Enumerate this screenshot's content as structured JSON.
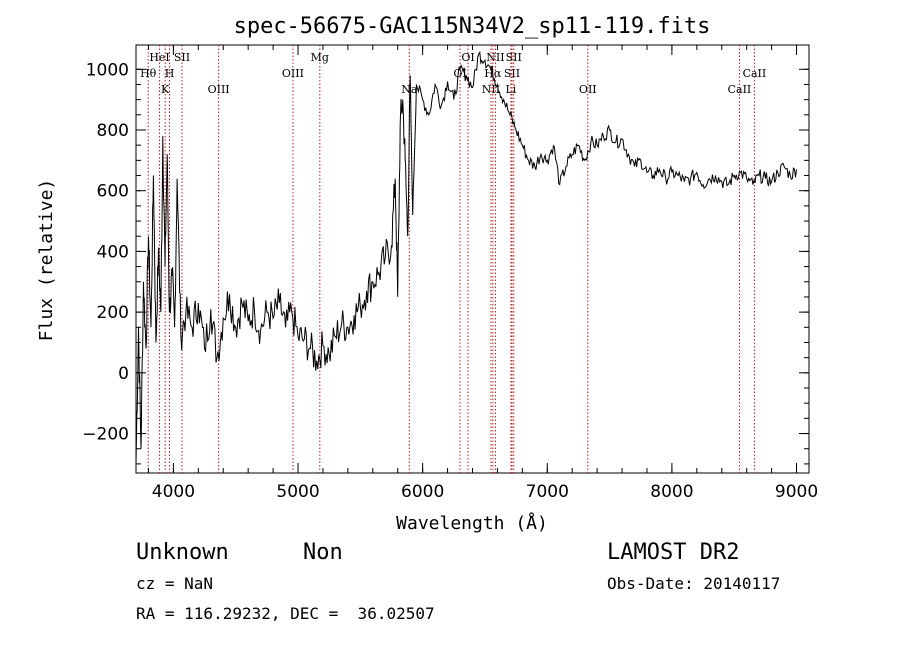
{
  "chart_data": {
    "type": "line",
    "title": "spec-56675-GAC115N34V2_sp11-119.fits",
    "xlabel": "Wavelength (Å)",
    "ylabel": "Flux (relative)",
    "xlim": [
      3700,
      9100
    ],
    "ylim": [
      -330,
      1080
    ],
    "xticks": [
      4000,
      5000,
      6000,
      7000,
      8000,
      9000
    ],
    "yticks": [
      -200,
      0,
      200,
      400,
      600,
      800,
      1000
    ],
    "xtick_labels": [
      "4000",
      "5000",
      "6000",
      "7000",
      "8000",
      "9000"
    ],
    "ytick_labels": [
      "−200",
      "0",
      "200",
      "400",
      "600",
      "800",
      "1000"
    ],
    "grid": false,
    "line_color": "#000000",
    "marker_color": "#b22222",
    "series": [
      {
        "x": [
          3700,
          3720,
          3740,
          3760,
          3780,
          3800,
          3820,
          3840,
          3860,
          3880,
          3900,
          3915,
          3933,
          3950,
          3968,
          3990,
          4010,
          4030,
          4060,
          4100,
          4150,
          4200,
          4250,
          4300,
          4350,
          4400,
          4450,
          4500,
          4550,
          4600,
          4650,
          4700,
          4750,
          4800,
          4850,
          4900,
          4950,
          5000,
          5050,
          5100,
          5150,
          5200,
          5250,
          5300,
          5350,
          5400,
          5450,
          5500,
          5550,
          5600,
          5650,
          5700,
          5750,
          5780,
          5800,
          5820,
          5840,
          5860,
          5880,
          5900,
          5920,
          5950,
          6000,
          6050,
          6100,
          6150,
          6200,
          6250,
          6300,
          6350,
          6400,
          6450,
          6500,
          6550,
          6600,
          6650,
          6700,
          6750,
          6800,
          6850,
          6900,
          6950,
          7000,
          7050,
          7100,
          7150,
          7200,
          7250,
          7300,
          7350,
          7400,
          7450,
          7500,
          7550,
          7600,
          7650,
          7700,
          7750,
          7800,
          7850,
          7900,
          7950,
          8000,
          8050,
          8100,
          8150,
          8200,
          8250,
          8300,
          8350,
          8400,
          8450,
          8500,
          8550,
          8600,
          8650,
          8700,
          8750,
          8800,
          8850,
          8900,
          8950,
          9000
        ],
        "y": [
          -300,
          150,
          -250,
          300,
          80,
          450,
          150,
          650,
          100,
          400,
          200,
          780,
          350,
          720,
          200,
          320,
          150,
          640,
          120,
          200,
          150,
          230,
          80,
          210,
          50,
          180,
          260,
          150,
          230,
          170,
          210,
          140,
          200,
          180,
          230,
          150,
          200,
          120,
          110,
          80,
          40,
          90,
          60,
          120,
          160,
          150,
          190,
          220,
          270,
          300,
          330,
          380,
          420,
          640,
          250,
          820,
          900,
          700,
          450,
          980,
          520,
          950,
          900,
          850,
          950,
          880,
          960,
          900,
          1000,
          980,
          940,
          1050,
          1030,
          1000,
          950,
          900,
          850,
          800,
          750,
          700,
          680,
          720,
          700,
          750,
          620,
          680,
          720,
          750,
          700,
          760,
          750,
          780,
          800,
          760,
          770,
          720,
          680,
          700,
          660,
          650,
          670,
          640,
          660,
          650,
          630,
          640,
          660,
          620,
          640,
          650,
          630,
          620,
          650,
          660,
          640,
          620,
          650,
          640,
          630,
          660,
          680,
          650,
          670
        ]
      }
    ],
    "markers": [
      {
        "name": "Hθ",
        "wave": 3798,
        "row": 2
      },
      {
        "name": "HeI",
        "wave": 3889,
        "row": 1
      },
      {
        "name": "K",
        "wave": 3934,
        "row": 3
      },
      {
        "name": "H",
        "wave": 3969,
        "row": 2
      },
      {
        "name": "SII",
        "wave": 4069,
        "row": 1
      },
      {
        "name": "OIII",
        "wave": 4363,
        "row": 3
      },
      {
        "name": "OIII",
        "wave": 4959,
        "row": 2
      },
      {
        "name": "Mg",
        "wave": 5175,
        "row": 1
      },
      {
        "name": "Na",
        "wave": 5893,
        "row": 3
      },
      {
        "name": "OI",
        "wave": 6300,
        "row": 2
      },
      {
        "name": "OI",
        "wave": 6364,
        "row": 1
      },
      {
        "name": "NII",
        "wave": 6548,
        "row": 3
      },
      {
        "name": "Hα",
        "wave": 6563,
        "row": 2
      },
      {
        "name": "NII",
        "wave": 6584,
        "row": 1
      },
      {
        "name": "Li",
        "wave": 6708,
        "row": 3
      },
      {
        "name": "SII",
        "wave": 6717,
        "row": 2
      },
      {
        "name": "SII",
        "wave": 6731,
        "row": 1
      },
      {
        "name": "OII",
        "wave": 7325,
        "row": 3
      },
      {
        "name": "CaII",
        "wave": 8542,
        "row": 3
      },
      {
        "name": "CaII",
        "wave": 8662,
        "row": 2
      }
    ]
  },
  "footer": {
    "object_class": "Unknown",
    "subclass": "Non",
    "survey": "LAMOST DR2",
    "redshift": "cz = NaN",
    "obs_date": "Obs-Date: 20140117",
    "coords": "RA = 116.29232, DEC =  36.02507"
  }
}
